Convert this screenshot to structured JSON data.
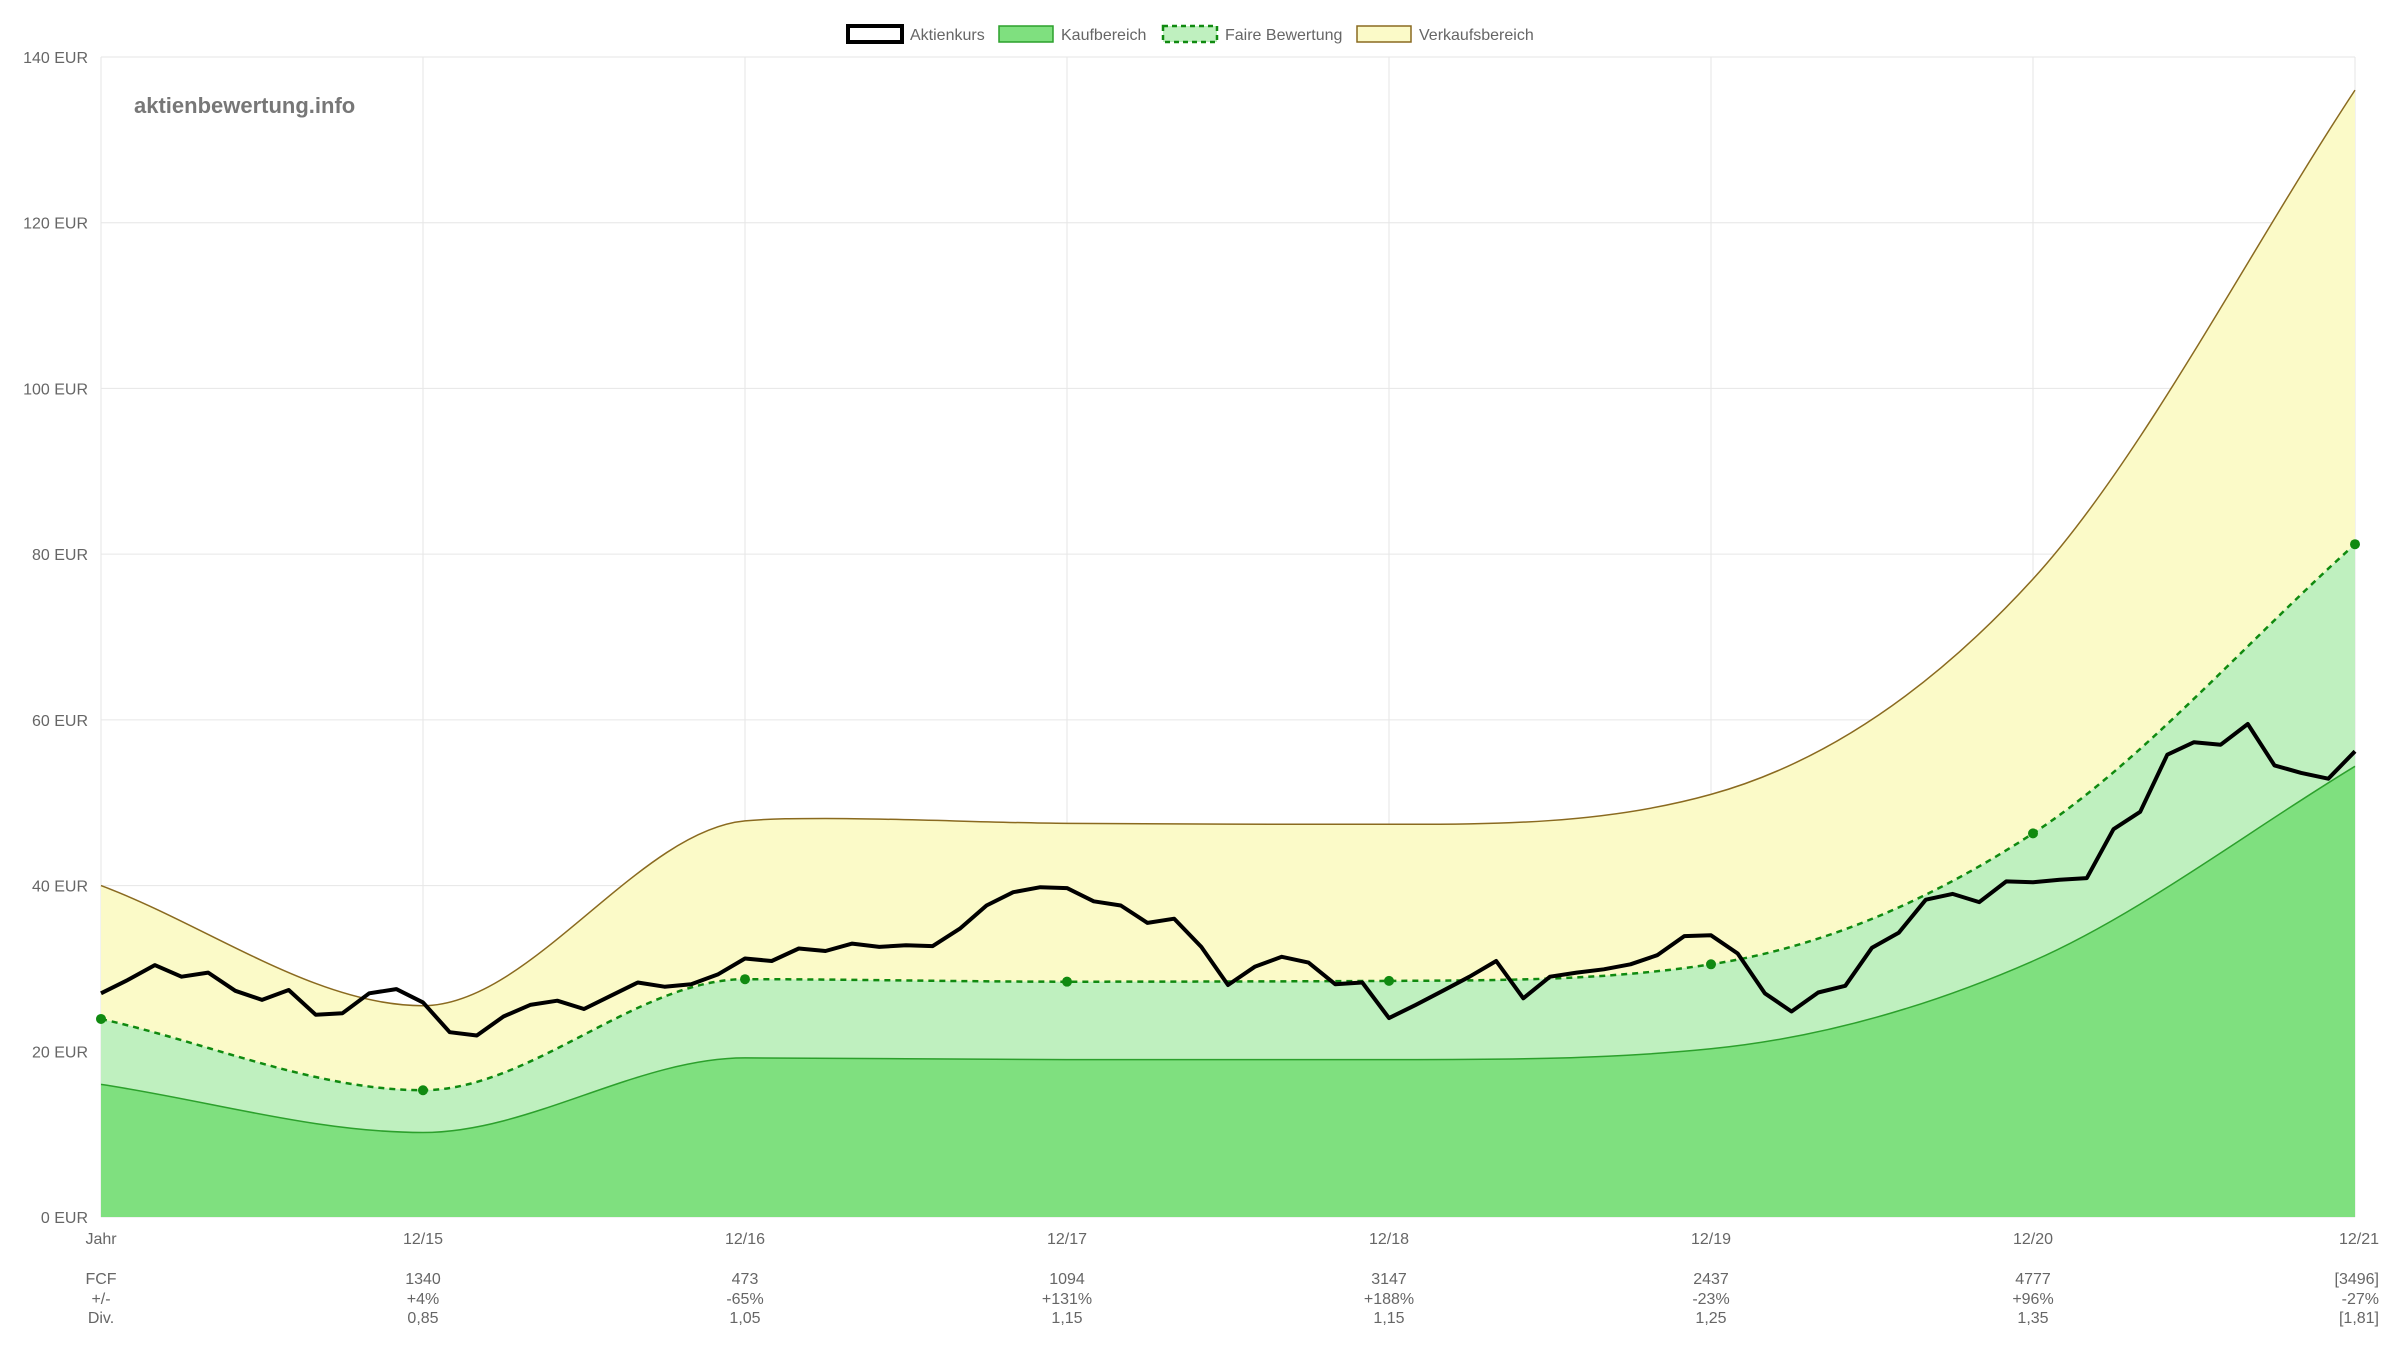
{
  "watermark": "aktienbewertung.info",
  "legend": [
    {
      "label": "Aktienkurs",
      "swatch": "price"
    },
    {
      "label": "Kaufbereich",
      "swatch": "buy"
    },
    {
      "label": "Faire Bewertung",
      "swatch": "fair"
    },
    {
      "label": "Verkaufsbereich",
      "swatch": "sell"
    }
  ],
  "colors": {
    "price": "#000000",
    "buy_fill": "#7fe07f",
    "buy_line": "#2ca02c",
    "fair_fill": "#bff0bf",
    "fair_line": "#108a10",
    "sell_fill": "#fbfac8",
    "sell_line": "#8a6a20",
    "grid": "#e6e6e6"
  },
  "table": {
    "rows": [
      {
        "label": "FCF",
        "values": [
          "1340",
          "473",
          "1094",
          "3147",
          "2437",
          "4777",
          "[3496]"
        ]
      },
      {
        "label": "+/-",
        "values": [
          "+4%",
          "-65%",
          "+131%",
          "+188%",
          "-23%",
          "+96%",
          "-27%"
        ]
      },
      {
        "label": "Div.",
        "values": [
          "0,85",
          "1,05",
          "1,15",
          "1,15",
          "1,25",
          "1,35",
          "[1,81]"
        ]
      }
    ]
  },
  "chart_data": {
    "type": "area",
    "x_tick_labels": [
      "Jahr",
      "12/15",
      "12/16",
      "12/17",
      "12/18",
      "12/19",
      "12/20",
      "12/21"
    ],
    "y_tick_labels": [
      "0 EUR",
      "20 EUR",
      "40 EUR",
      "60 EUR",
      "80 EUR",
      "100 EUR",
      "120 EUR",
      "140 EUR"
    ],
    "ylim": [
      0,
      140
    ],
    "xlim": [
      0,
      7
    ],
    "grid": true,
    "legend_position": "top",
    "series": [
      {
        "name": "Verkaufsbereich",
        "kind": "area",
        "points": [
          [
            0,
            40
          ],
          [
            1,
            25.5
          ],
          [
            2,
            47.8
          ],
          [
            2.25,
            48.1
          ],
          [
            3,
            47.5
          ],
          [
            4,
            47.4
          ],
          [
            5,
            51
          ],
          [
            6,
            77
          ],
          [
            7,
            136
          ]
        ]
      },
      {
        "name": "Faire Bewertung",
        "kind": "dashed-area",
        "points": [
          [
            0,
            23.9
          ],
          [
            1,
            15.3
          ],
          [
            2,
            28.7
          ],
          [
            3,
            28.4
          ],
          [
            4,
            28.5
          ],
          [
            5,
            30.5
          ],
          [
            6,
            46.3
          ],
          [
            7,
            81.2
          ]
        ],
        "markers": true
      },
      {
        "name": "Kaufbereich",
        "kind": "area",
        "points": [
          [
            0,
            16
          ],
          [
            1,
            10.2
          ],
          [
            2,
            19.2
          ],
          [
            3,
            19
          ],
          [
            4,
            19
          ],
          [
            5,
            20.3
          ],
          [
            6,
            30.9
          ],
          [
            7,
            54.4
          ]
        ]
      },
      {
        "name": "Aktienkurs",
        "kind": "line",
        "points": [
          [
            0,
            27.0
          ],
          [
            0.083,
            28.6
          ],
          [
            0.167,
            30.4
          ],
          [
            0.25,
            29.0
          ],
          [
            0.333,
            29.5
          ],
          [
            0.417,
            27.3
          ],
          [
            0.5,
            26.2
          ],
          [
            0.583,
            27.4
          ],
          [
            0.667,
            24.4
          ],
          [
            0.75,
            24.6
          ],
          [
            0.833,
            27.0
          ],
          [
            0.917,
            27.5
          ],
          [
            1,
            25.9
          ],
          [
            1.083,
            22.3
          ],
          [
            1.167,
            21.9
          ],
          [
            1.25,
            24.2
          ],
          [
            1.333,
            25.6
          ],
          [
            1.417,
            26.1
          ],
          [
            1.5,
            25.1
          ],
          [
            1.583,
            26.7
          ],
          [
            1.667,
            28.3
          ],
          [
            1.75,
            27.8
          ],
          [
            1.833,
            28.1
          ],
          [
            1.917,
            29.3
          ],
          [
            2,
            31.2
          ],
          [
            2.083,
            30.9
          ],
          [
            2.167,
            32.4
          ],
          [
            2.25,
            32.1
          ],
          [
            2.333,
            33.0
          ],
          [
            2.417,
            32.6
          ],
          [
            2.5,
            32.8
          ],
          [
            2.583,
            32.7
          ],
          [
            2.667,
            34.8
          ],
          [
            2.75,
            37.6
          ],
          [
            2.833,
            39.2
          ],
          [
            2.917,
            39.8
          ],
          [
            3,
            39.7
          ],
          [
            3.083,
            38.1
          ],
          [
            3.167,
            37.6
          ],
          [
            3.25,
            35.5
          ],
          [
            3.333,
            36.0
          ],
          [
            3.417,
            32.6
          ],
          [
            3.5,
            28.0
          ],
          [
            3.583,
            30.2
          ],
          [
            3.667,
            31.4
          ],
          [
            3.75,
            30.7
          ],
          [
            3.833,
            28.1
          ],
          [
            3.917,
            28.3
          ],
          [
            4,
            24.0
          ],
          [
            4.083,
            25.6
          ],
          [
            4.167,
            27.3
          ],
          [
            4.25,
            29.0
          ],
          [
            4.333,
            30.9
          ],
          [
            4.417,
            26.4
          ],
          [
            4.5,
            29.0
          ],
          [
            4.583,
            29.5
          ],
          [
            4.667,
            29.9
          ],
          [
            4.75,
            30.5
          ],
          [
            4.833,
            31.6
          ],
          [
            4.917,
            33.9
          ],
          [
            5,
            34.0
          ],
          [
            5.083,
            31.8
          ],
          [
            5.167,
            27.0
          ],
          [
            5.25,
            24.8
          ],
          [
            5.333,
            27.1
          ],
          [
            5.417,
            27.9
          ],
          [
            5.5,
            32.5
          ],
          [
            5.583,
            34.3
          ],
          [
            5.667,
            38.3
          ],
          [
            5.75,
            39.0
          ],
          [
            5.833,
            38.0
          ],
          [
            5.917,
            40.5
          ],
          [
            6,
            40.4
          ],
          [
            6.083,
            40.7
          ],
          [
            6.167,
            40.9
          ],
          [
            6.25,
            46.8
          ],
          [
            6.333,
            48.9
          ],
          [
            6.417,
            55.8
          ],
          [
            6.5,
            57.3
          ],
          [
            6.583,
            57.0
          ],
          [
            6.667,
            59.5
          ],
          [
            6.75,
            54.5
          ],
          [
            6.833,
            53.6
          ],
          [
            6.917,
            52.9
          ],
          [
            7,
            56.2
          ]
        ]
      }
    ]
  }
}
